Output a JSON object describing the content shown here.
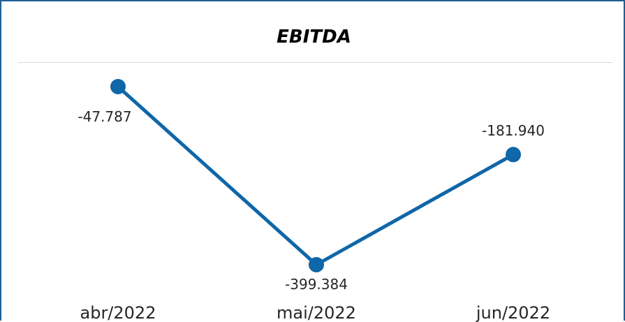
{
  "chart_data": {
    "type": "line",
    "title": "EBITDA",
    "categories": [
      "abr/2022",
      "mai/2022",
      "jun/2022"
    ],
    "series": [
      {
        "values": [
          -47787,
          -399384,
          -181940
        ],
        "labels": [
          "-47.787",
          "-399.384",
          "-181.940"
        ],
        "color": "#0f66a8"
      }
    ],
    "ylim": [
      -400000,
      -40000
    ],
    "grid": false,
    "legend": "none"
  }
}
